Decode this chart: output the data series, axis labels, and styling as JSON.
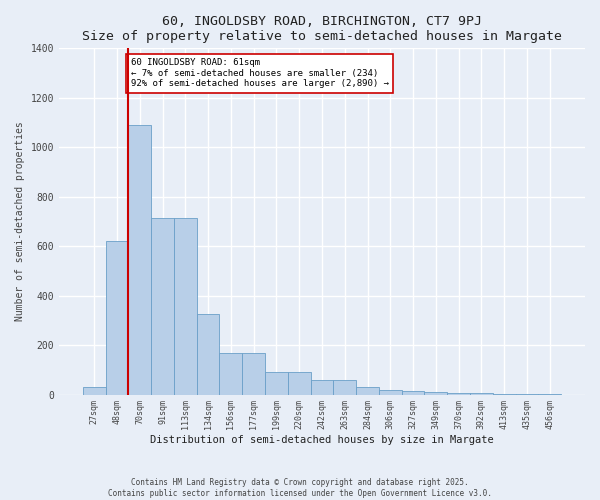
{
  "title": "60, INGOLDSBY ROAD, BIRCHINGTON, CT7 9PJ",
  "subtitle": "Size of property relative to semi-detached houses in Margate",
  "xlabel": "Distribution of semi-detached houses by size in Margate",
  "ylabel": "Number of semi-detached properties",
  "bin_labels": [
    "27sqm",
    "48sqm",
    "70sqm",
    "91sqm",
    "113sqm",
    "134sqm",
    "156sqm",
    "177sqm",
    "199sqm",
    "220sqm",
    "242sqm",
    "263sqm",
    "284sqm",
    "306sqm",
    "327sqm",
    "349sqm",
    "370sqm",
    "392sqm",
    "413sqm",
    "435sqm",
    "456sqm"
  ],
  "bar_values": [
    30,
    620,
    1090,
    715,
    715,
    325,
    170,
    170,
    90,
    90,
    57,
    57,
    30,
    18,
    15,
    10,
    8,
    5,
    3,
    2,
    1
  ],
  "bar_color": "#b8cfe8",
  "bar_edge_color": "#6a9fc8",
  "property_line_x": 1.5,
  "annotation_text": "60 INGOLDSBY ROAD: 61sqm\n← 7% of semi-detached houses are smaller (234)\n92% of semi-detached houses are larger (2,890) →",
  "annotation_box_color": "#ffffff",
  "annotation_box_edge": "#cc0000",
  "vline_color": "#cc0000",
  "bg_color": "#e8eef7",
  "grid_color": "#ffffff",
  "ylim": [
    0,
    1400
  ],
  "yticks": [
    0,
    200,
    400,
    600,
    800,
    1000,
    1200,
    1400
  ],
  "footer1": "Contains HM Land Registry data © Crown copyright and database right 2025.",
  "footer2": "Contains public sector information licensed under the Open Government Licence v3.0."
}
